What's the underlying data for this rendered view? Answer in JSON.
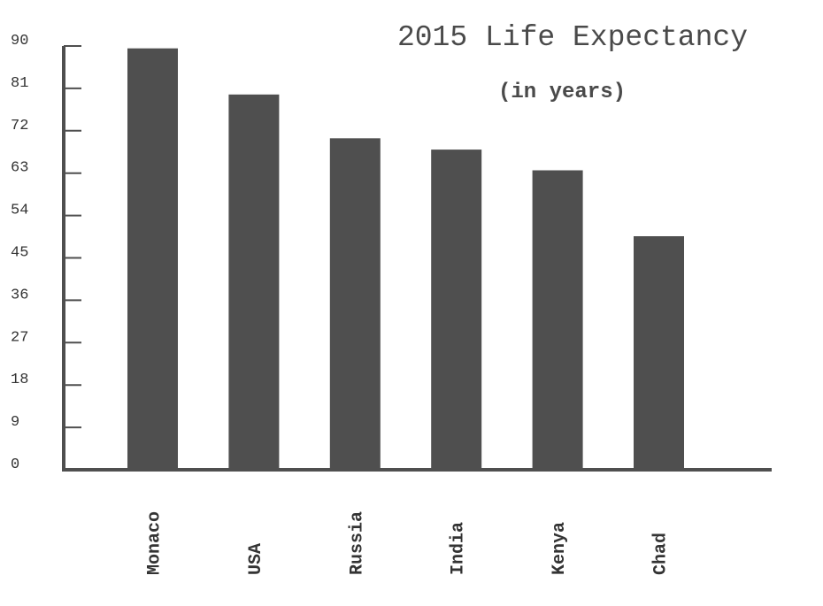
{
  "chart_data": {
    "type": "bar",
    "title": "2015 Life Expectancy",
    "subtitle": "(in years)",
    "xlabel": "",
    "ylabel": "",
    "categories": [
      "Monaco",
      "USA",
      "Russia",
      "India",
      "Kenya",
      "Chad"
    ],
    "values": [
      89.5,
      79.7,
      70.4,
      68.0,
      63.6,
      49.6
    ],
    "ylim": [
      0,
      90
    ],
    "yticks": [
      "0",
      "9",
      "18",
      "27",
      "36",
      "45",
      "54",
      "63",
      "72",
      "81",
      "90"
    ],
    "grid": false,
    "legend": "none",
    "colors": {
      "bar": "#4f4f4f",
      "axis": "#4f4f4f",
      "text": "#333333"
    }
  }
}
